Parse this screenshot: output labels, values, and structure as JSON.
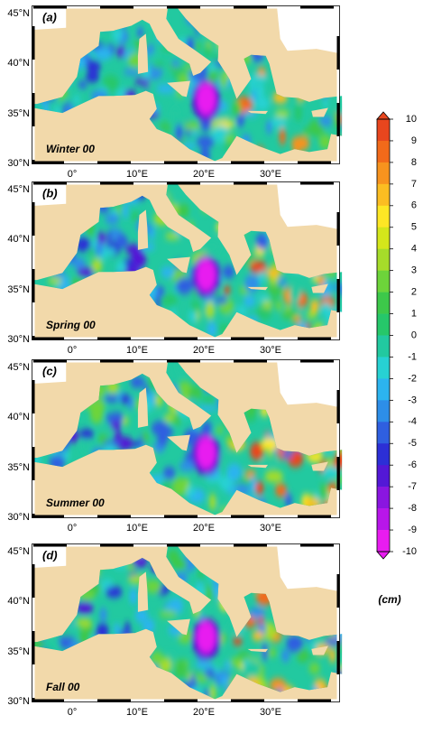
{
  "panels": [
    {
      "label": "(a)",
      "season": "Winter 00"
    },
    {
      "label": "(b)",
      "season": "Spring 00"
    },
    {
      "label": "(c)",
      "season": "Summer 00"
    },
    {
      "label": "(d)",
      "season": "Fall 00"
    }
  ],
  "lat_labels": [
    "45°N",
    "40°N",
    "35°N",
    "30°N"
  ],
  "lon_labels": [
    "0°",
    "10°E",
    "20°E",
    "30°E"
  ],
  "colorbar": {
    "ticks": [
      10,
      9,
      8,
      7,
      6,
      5,
      4,
      3,
      2,
      1,
      0,
      -1,
      -2,
      -3,
      -4,
      -5,
      -6,
      -7,
      -8,
      -9,
      -10
    ],
    "colors": [
      "#e8461e",
      "#f26a1a",
      "#f7931e",
      "#fbbd22",
      "#fde725",
      "#d4e61b",
      "#a6dc2a",
      "#6dd43a",
      "#3dc84a",
      "#26c76a",
      "#22c9a0",
      "#27d1d3",
      "#2cb4ef",
      "#2d8ee8",
      "#2f5fe0",
      "#2c2fd6",
      "#5318d6",
      "#8a16e0",
      "#b816ea",
      "#e81cf0"
    ],
    "unit": "(cm)"
  }
}
